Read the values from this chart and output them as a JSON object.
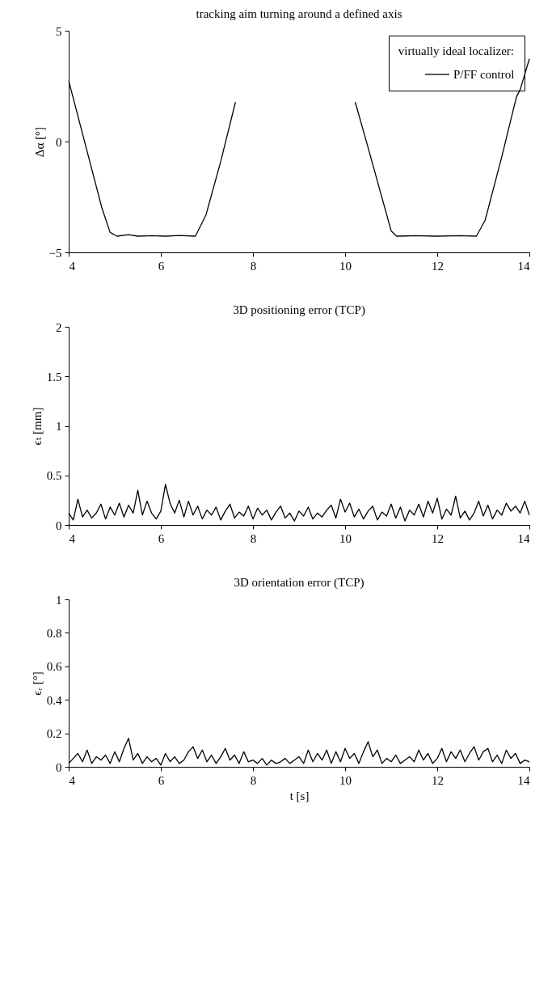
{
  "chart_data": [
    {
      "type": "line",
      "title": "tracking aim turning around a defined axis",
      "ylabel": "Δα [°]",
      "xlim": [
        4,
        14
      ],
      "xticks": [
        4,
        6,
        8,
        10,
        12,
        14
      ],
      "ylim": [
        -5,
        5
      ],
      "yticks": [
        -5,
        0,
        5
      ],
      "grid": false,
      "legend": "top right",
      "legend_title": "virtually ideal localizer:",
      "line_style": "solid",
      "marker": "none",
      "x": [
        4,
        4.72,
        4.9,
        5.05,
        5.3,
        5.5,
        5.8,
        6.1,
        6.4,
        6.75,
        6.98,
        7.3,
        7.62,
        8.9,
        10.22,
        10.48,
        11.0,
        11.12,
        11.5,
        12.0,
        12.5,
        12.85,
        13.04,
        13.4,
        13.72,
        13.8,
        14
      ],
      "series": [
        {
          "name": "P/FF control",
          "color": "#000000",
          "values": [
            2.74,
            -2.99,
            -4.1,
            -4.27,
            -4.2,
            -4.27,
            -4.25,
            -4.27,
            -4.24,
            -4.27,
            -3.31,
            -0.9,
            1.78,
            null,
            1.78,
            -0.13,
            -4.03,
            -4.27,
            -4.25,
            -4.27,
            -4.25,
            -4.27,
            -3.55,
            -0.7,
            2.02,
            2.34,
            3.73
          ]
        }
      ]
    },
    {
      "type": "line",
      "title": "3D positioning error (TCP)",
      "ylabel": "ϵₜ [mm]",
      "xlim": [
        4,
        14
      ],
      "xticks": [
        4,
        6,
        8,
        10,
        12,
        14
      ],
      "ylim": [
        0,
        2
      ],
      "yticks": [
        0,
        0.5,
        1,
        1.5,
        2
      ],
      "grid": false,
      "legend": false,
      "line_style": "solid",
      "marker": "none",
      "x": [
        4,
        4.1,
        4.2,
        4.3,
        4.4,
        4.5,
        4.6,
        4.7,
        4.8,
        4.9,
        5,
        5.1,
        5.2,
        5.3,
        5.4,
        5.5,
        5.6,
        5.7,
        5.8,
        5.9,
        6,
        6.1,
        6.2,
        6.3,
        6.4,
        6.5,
        6.6,
        6.7,
        6.8,
        6.9,
        7,
        7.1,
        7.2,
        7.3,
        7.4,
        7.5,
        7.6,
        7.7,
        7.8,
        7.9,
        8,
        8.1,
        8.2,
        8.3,
        8.4,
        8.5,
        8.6,
        8.7,
        8.8,
        8.9,
        9,
        9.1,
        9.2,
        9.3,
        9.4,
        9.5,
        9.6,
        9.7,
        9.8,
        9.9,
        10,
        10.1,
        10.2,
        10.3,
        10.4,
        10.5,
        10.6,
        10.7,
        10.8,
        10.9,
        11,
        11.1,
        11.2,
        11.3,
        11.4,
        11.5,
        11.6,
        11.7,
        11.8,
        11.9,
        12,
        12.1,
        12.2,
        12.3,
        12.4,
        12.5,
        12.6,
        12.7,
        12.8,
        12.9,
        13,
        13.1,
        13.2,
        13.3,
        13.4,
        13.5,
        13.6,
        13.7,
        13.8,
        13.9,
        14
      ],
      "series": [
        {
          "color": "#000000",
          "values": [
            0.12,
            0.05,
            0.26,
            0.08,
            0.15,
            0.07,
            0.12,
            0.21,
            0.06,
            0.18,
            0.1,
            0.22,
            0.08,
            0.2,
            0.12,
            0.35,
            0.1,
            0.24,
            0.12,
            0.06,
            0.14,
            0.41,
            0.22,
            0.12,
            0.25,
            0.08,
            0.24,
            0.1,
            0.19,
            0.06,
            0.15,
            0.1,
            0.18,
            0.05,
            0.14,
            0.21,
            0.07,
            0.13,
            0.09,
            0.19,
            0.06,
            0.17,
            0.1,
            0.15,
            0.05,
            0.13,
            0.19,
            0.07,
            0.12,
            0.04,
            0.14,
            0.09,
            0.18,
            0.06,
            0.12,
            0.08,
            0.15,
            0.2,
            0.07,
            0.26,
            0.13,
            0.22,
            0.08,
            0.16,
            0.06,
            0.14,
            0.19,
            0.05,
            0.13,
            0.09,
            0.21,
            0.07,
            0.18,
            0.04,
            0.15,
            0.1,
            0.21,
            0.08,
            0.24,
            0.12,
            0.27,
            0.06,
            0.16,
            0.1,
            0.29,
            0.07,
            0.14,
            0.05,
            0.12,
            0.24,
            0.09,
            0.2,
            0.06,
            0.15,
            0.1,
            0.22,
            0.14,
            0.19,
            0.12,
            0.24,
            0.1
          ]
        }
      ]
    },
    {
      "type": "line",
      "title": "3D orientation error (TCP)",
      "xlabel": "t [s]",
      "ylabel": "ϵᵣ [°]",
      "xlim": [
        4,
        14
      ],
      "xticks": [
        4,
        6,
        8,
        10,
        12,
        14
      ],
      "ylim": [
        0,
        1
      ],
      "yticks": [
        0,
        0.2,
        0.4,
        0.6,
        0.8,
        1
      ],
      "grid": false,
      "legend": false,
      "line_style": "solid",
      "marker": "none",
      "x": [
        4,
        4.1,
        4.2,
        4.3,
        4.4,
        4.5,
        4.6,
        4.7,
        4.8,
        4.9,
        5,
        5.1,
        5.2,
        5.3,
        5.4,
        5.5,
        5.6,
        5.7,
        5.8,
        5.9,
        6,
        6.1,
        6.2,
        6.3,
        6.4,
        6.5,
        6.6,
        6.7,
        6.8,
        6.9,
        7,
        7.1,
        7.2,
        7.3,
        7.4,
        7.5,
        7.6,
        7.7,
        7.8,
        7.9,
        8,
        8.1,
        8.2,
        8.3,
        8.4,
        8.5,
        8.6,
        8.7,
        8.8,
        8.9,
        9,
        9.1,
        9.2,
        9.3,
        9.4,
        9.5,
        9.6,
        9.7,
        9.8,
        9.9,
        10,
        10.1,
        10.2,
        10.3,
        10.4,
        10.5,
        10.6,
        10.7,
        10.8,
        10.9,
        11,
        11.1,
        11.2,
        11.3,
        11.4,
        11.5,
        11.6,
        11.7,
        11.8,
        11.9,
        12,
        12.1,
        12.2,
        12.3,
        12.4,
        12.5,
        12.6,
        12.7,
        12.8,
        12.9,
        13,
        13.1,
        13.2,
        13.3,
        13.4,
        13.5,
        13.6,
        13.7,
        13.8,
        13.9,
        14
      ],
      "series": [
        {
          "color": "#000000",
          "values": [
            0.02,
            0.05,
            0.08,
            0.03,
            0.1,
            0.02,
            0.06,
            0.04,
            0.07,
            0.02,
            0.09,
            0.03,
            0.11,
            0.17,
            0.04,
            0.08,
            0.02,
            0.06,
            0.03,
            0.05,
            0.01,
            0.08,
            0.03,
            0.06,
            0.02,
            0.04,
            0.09,
            0.12,
            0.05,
            0.1,
            0.03,
            0.07,
            0.02,
            0.06,
            0.11,
            0.04,
            0.07,
            0.02,
            0.09,
            0.03,
            0.04,
            0.02,
            0.05,
            0.01,
            0.04,
            0.02,
            0.03,
            0.05,
            0.02,
            0.04,
            0.06,
            0.02,
            0.1,
            0.03,
            0.08,
            0.04,
            0.1,
            0.02,
            0.09,
            0.03,
            0.11,
            0.05,
            0.08,
            0.02,
            0.09,
            0.15,
            0.06,
            0.1,
            0.02,
            0.05,
            0.03,
            0.07,
            0.02,
            0.04,
            0.06,
            0.03,
            0.1,
            0.04,
            0.08,
            0.02,
            0.05,
            0.11,
            0.03,
            0.09,
            0.05,
            0.1,
            0.03,
            0.08,
            0.12,
            0.04,
            0.09,
            0.11,
            0.03,
            0.07,
            0.02,
            0.1,
            0.05,
            0.08,
            0.02,
            0.04,
            0.03
          ]
        }
      ]
    }
  ]
}
